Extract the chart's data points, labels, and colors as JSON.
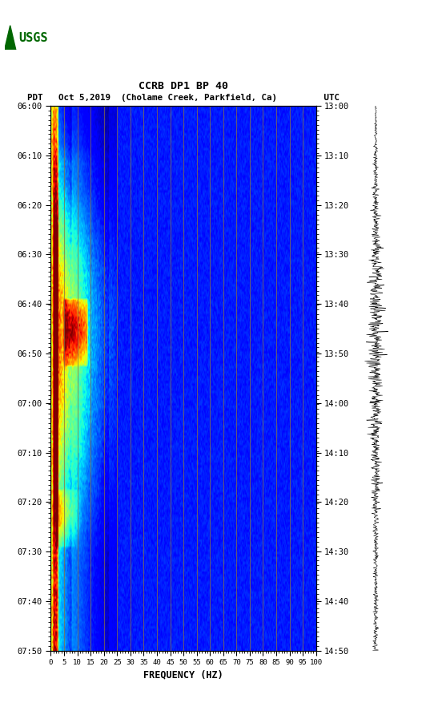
{
  "title_line1": "CCRB DP1 BP 40",
  "title_line2": "PDT   Oct 5,2019  (Cholame Creek, Parkfield, Ca)         UTC",
  "xlabel": "FREQUENCY (HZ)",
  "freq_ticks": [
    0,
    5,
    10,
    15,
    20,
    25,
    30,
    35,
    40,
    45,
    50,
    55,
    60,
    65,
    70,
    75,
    80,
    85,
    90,
    95,
    100
  ],
  "time_ticks_left": [
    "06:00",
    "06:10",
    "06:20",
    "06:30",
    "06:40",
    "06:50",
    "07:00",
    "07:10",
    "07:20",
    "07:30",
    "07:40",
    "07:50"
  ],
  "time_ticks_right": [
    "13:00",
    "13:10",
    "13:20",
    "13:30",
    "13:40",
    "13:50",
    "14:00",
    "14:10",
    "14:20",
    "14:30",
    "14:40",
    "14:50"
  ],
  "vertical_line_color": "#8B7040",
  "vertical_line_freqs": [
    5,
    10,
    15,
    20,
    25,
    30,
    35,
    40,
    45,
    50,
    55,
    60,
    65,
    70,
    75,
    80,
    85,
    90,
    95
  ],
  "colormap": "jet",
  "n_time": 220,
  "n_freq": 400,
  "bg_level": 0.12,
  "bg_noise": 0.06,
  "usgs_color": "#006600"
}
